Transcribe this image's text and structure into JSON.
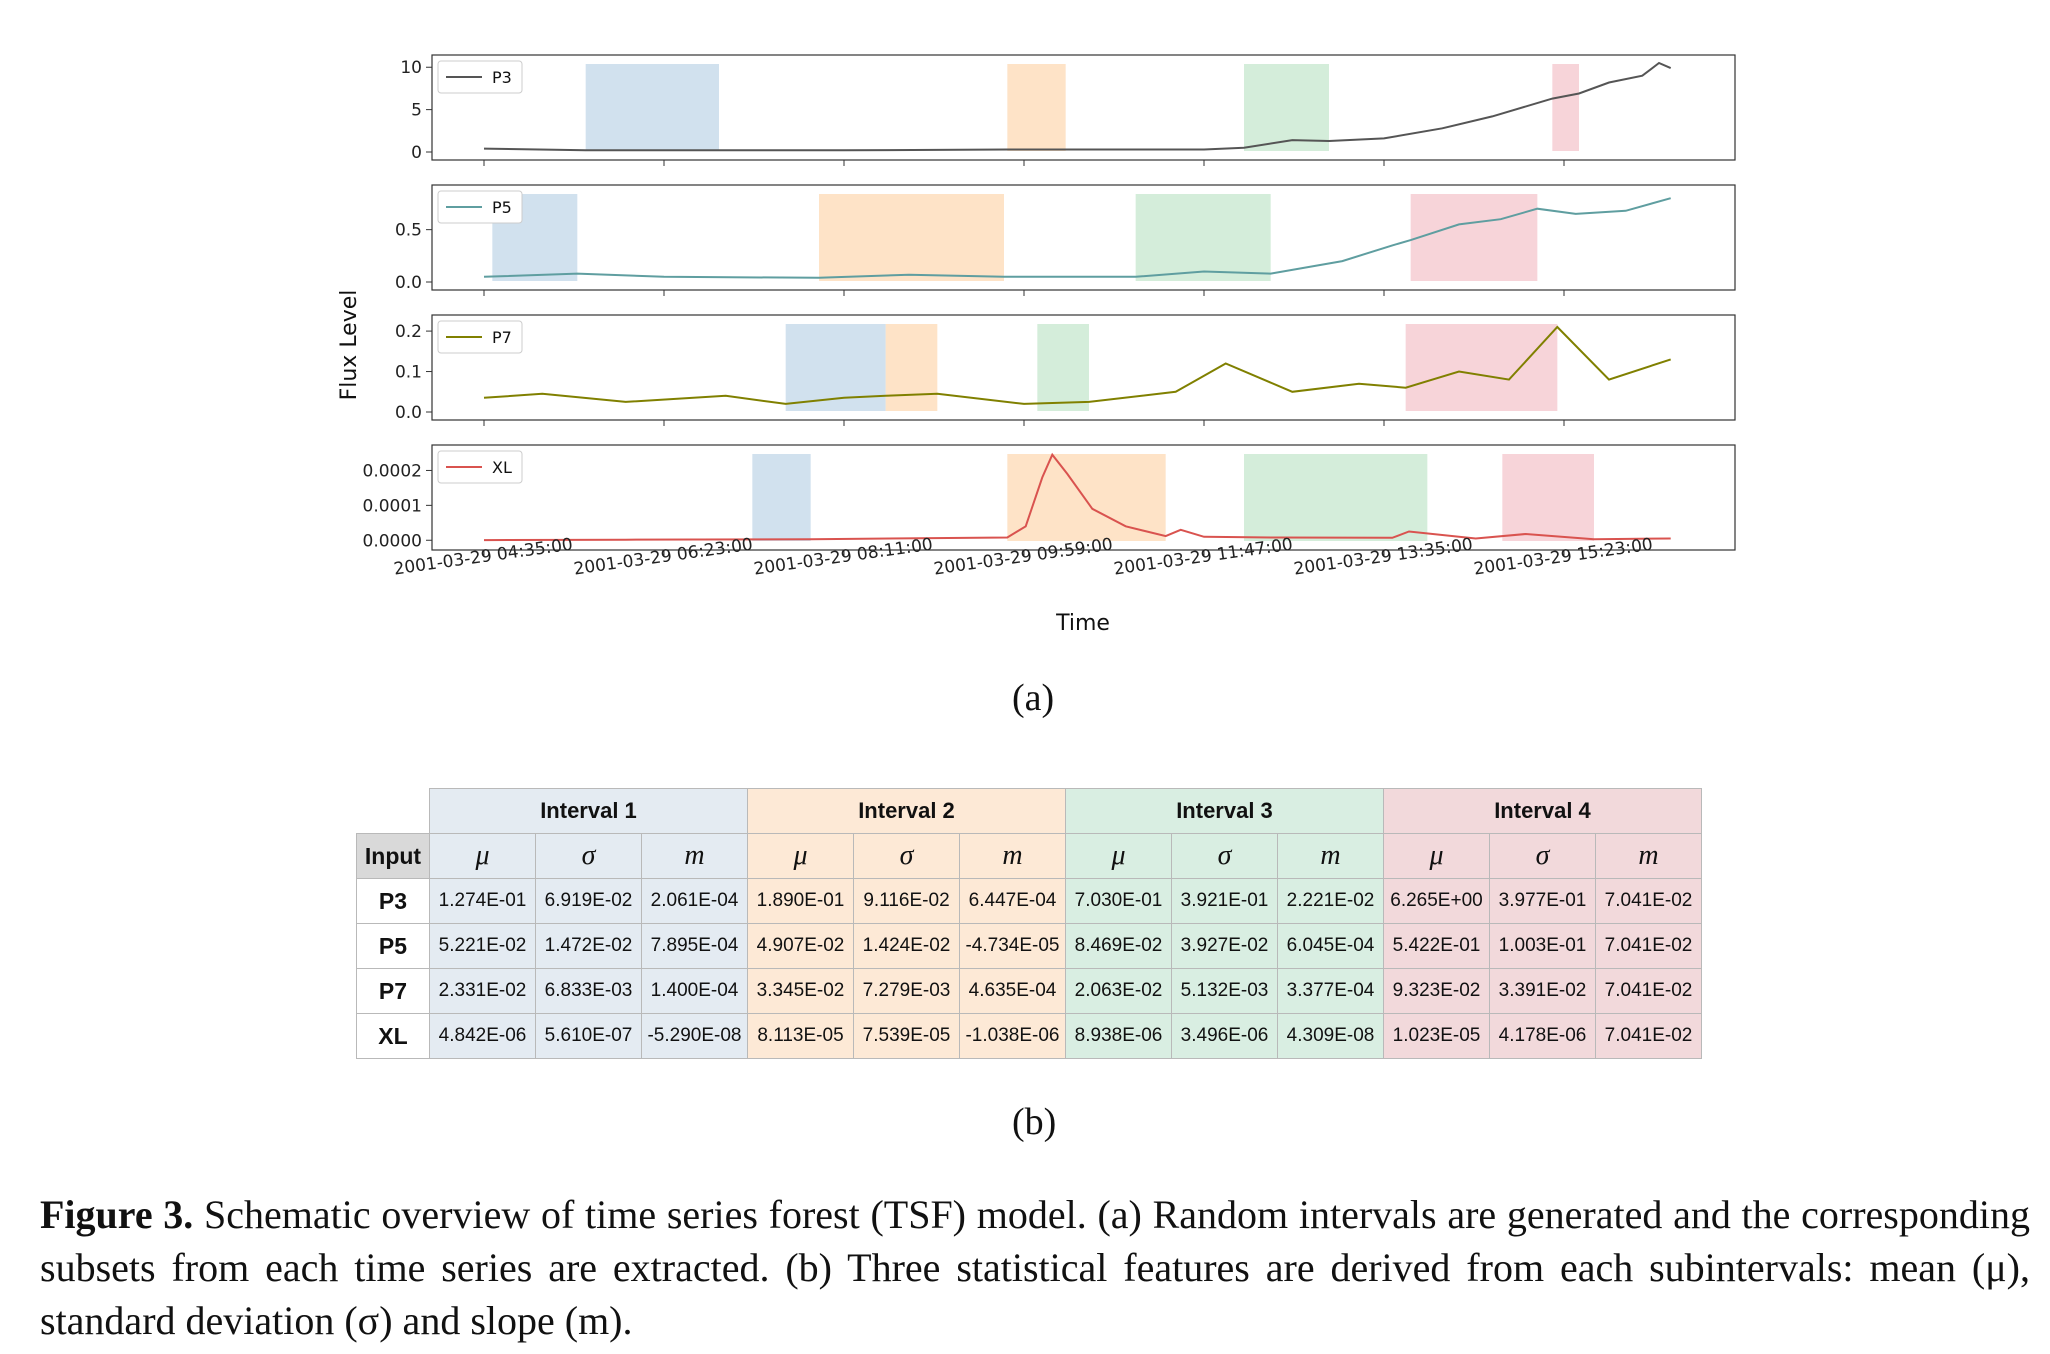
{
  "figure": {
    "subfigure_a_label": "(a)",
    "subfigure_b_label": "(b)",
    "caption_bold": "Figure 3.",
    "caption_text": "Schematic overview of time series forest (TSF) model. (a) Random intervals are generated and the corresponding subsets from each time series are extracted. (b) Three statistical features are derived from each subintervals: mean (μ), standard deviation (σ) and slope (m)."
  },
  "chart_data": {
    "type": "line",
    "xlabel": "Time",
    "ylabel": "Flux Level",
    "x_ticks": [
      "2001-03-29 04:35:00",
      "2001-03-29 06:23:00",
      "2001-03-29 08:11:00",
      "2001-03-29 09:59:00",
      "2001-03-29 11:47:00",
      "2001-03-29 13:35:00",
      "2001-03-29 15:23:00"
    ],
    "interval_colors": [
      "#b3cde3",
      "#fdd0a2",
      "#b7e1c1",
      "#f2b7bf"
    ],
    "panels": [
      {
        "name": "P3",
        "color": "#555555",
        "ylim": [
          0,
          10.5
        ],
        "yticks": [
          "10",
          "5",
          "0"
        ],
        "ytick_values": [
          10,
          5,
          0
        ],
        "intervals": [
          [
            "2001-03-29 05:36:00",
            "2001-03-29 06:56:00"
          ],
          [
            "2001-03-29 09:49:00",
            "2001-03-29 10:24:00"
          ],
          [
            "2001-03-29 12:11:00",
            "2001-03-29 13:02:00"
          ],
          [
            "2001-03-29 15:16:00",
            "2001-03-29 15:32:00"
          ]
        ],
        "x": [
          "2001-03-29 04:35:00",
          "2001-03-29 05:36:00",
          "2001-03-29 06:56:00",
          "2001-03-29 08:11:00",
          "2001-03-29 09:49:00",
          "2001-03-29 10:24:00",
          "2001-03-29 11:47:00",
          "2001-03-29 12:11:00",
          "2001-03-29 12:40:00",
          "2001-03-29 13:02:00",
          "2001-03-29 13:35:00",
          "2001-03-29 14:10:00",
          "2001-03-29 14:40:00",
          "2001-03-29 15:16:00",
          "2001-03-29 15:32:00",
          "2001-03-29 15:50:00",
          "2001-03-29 16:10:00",
          "2001-03-29 16:20:00",
          "2001-03-29 16:27:00"
        ],
        "y": [
          0.4,
          0.2,
          0.2,
          0.2,
          0.3,
          0.3,
          0.3,
          0.5,
          1.4,
          1.3,
          1.6,
          2.8,
          4.2,
          6.3,
          6.9,
          8.2,
          9.0,
          10.5,
          9.9
        ]
      },
      {
        "name": "P5",
        "color": "#5f9ea0",
        "ylim": [
          0,
          0.85
        ],
        "yticks": [
          "0.5",
          "0.0"
        ],
        "ytick_values": [
          0.5,
          0.0
        ],
        "intervals": [
          [
            "2001-03-29 04:40:00",
            "2001-03-29 05:31:00"
          ],
          [
            "2001-03-29 07:56:00",
            "2001-03-29 09:47:00"
          ],
          [
            "2001-03-29 11:06:00",
            "2001-03-29 12:27:00"
          ],
          [
            "2001-03-29 13:51:00",
            "2001-03-29 15:07:00"
          ]
        ],
        "x": [
          "2001-03-29 04:35:00",
          "2001-03-29 05:31:00",
          "2001-03-29 06:23:00",
          "2001-03-29 07:56:00",
          "2001-03-29 08:50:00",
          "2001-03-29 09:47:00",
          "2001-03-29 11:06:00",
          "2001-03-29 11:47:00",
          "2001-03-29 12:27:00",
          "2001-03-29 13:10:00",
          "2001-03-29 13:40:00",
          "2001-03-29 13:51:00",
          "2001-03-29 14:20:00",
          "2001-03-29 14:45:00",
          "2001-03-29 15:07:00",
          "2001-03-29 15:30:00",
          "2001-03-29 16:00:00",
          "2001-03-29 16:27:00"
        ],
        "y": [
          0.05,
          0.08,
          0.05,
          0.04,
          0.07,
          0.05,
          0.05,
          0.1,
          0.08,
          0.2,
          0.35,
          0.4,
          0.55,
          0.6,
          0.7,
          0.65,
          0.68,
          0.8
        ]
      },
      {
        "name": "P7",
        "color": "#808000",
        "ylim": [
          0,
          0.22
        ],
        "yticks": [
          "0.2",
          "0.1",
          "0.0"
        ],
        "ytick_values": [
          0.2,
          0.1,
          0.0
        ],
        "intervals": [
          [
            "2001-03-29 07:36:00",
            "2001-03-29 08:36:00"
          ],
          [
            "2001-03-29 08:36:00",
            "2001-03-29 09:07:00"
          ],
          [
            "2001-03-29 10:07:00",
            "2001-03-29 10:38:00"
          ],
          [
            "2001-03-29 13:48:00",
            "2001-03-29 15:19:00"
          ]
        ],
        "x": [
          "2001-03-29 04:35:00",
          "2001-03-29 05:10:00",
          "2001-03-29 06:00:00",
          "2001-03-29 07:00:00",
          "2001-03-29 07:36:00",
          "2001-03-29 08:11:00",
          "2001-03-29 08:36:00",
          "2001-03-29 09:07:00",
          "2001-03-29 09:59:00",
          "2001-03-29 10:38:00",
          "2001-03-29 11:30:00",
          "2001-03-29 12:00:00",
          "2001-03-29 12:40:00",
          "2001-03-29 13:20:00",
          "2001-03-29 13:48:00",
          "2001-03-29 14:20:00",
          "2001-03-29 14:50:00",
          "2001-03-29 15:19:00",
          "2001-03-29 15:50:00",
          "2001-03-29 16:27:00"
        ],
        "y": [
          0.035,
          0.045,
          0.025,
          0.04,
          0.02,
          0.035,
          0.04,
          0.045,
          0.02,
          0.025,
          0.05,
          0.12,
          0.05,
          0.07,
          0.06,
          0.1,
          0.08,
          0.21,
          0.08,
          0.13
        ]
      },
      {
        "name": "XL",
        "color": "#d9534f",
        "ylim": [
          -5e-06,
          0.00025
        ],
        "yticks": [
          "0.0002",
          "0.0001",
          "0.0000"
        ],
        "ytick_values": [
          0.0002,
          0.0001,
          0.0
        ],
        "intervals": [
          [
            "2001-03-29 07:16:00",
            "2001-03-29 07:51:00"
          ],
          [
            "2001-03-29 09:49:00",
            "2001-03-29 11:24:00"
          ],
          [
            "2001-03-29 12:11:00",
            "2001-03-29 14:01:00"
          ],
          [
            "2001-03-29 14:46:00",
            "2001-03-29 15:41:00"
          ]
        ],
        "x": [
          "2001-03-29 04:35:00",
          "2001-03-29 06:00:00",
          "2001-03-29 07:51:00",
          "2001-03-29 09:49:00",
          "2001-03-29 10:00:00",
          "2001-03-29 10:10:00",
          "2001-03-29 10:16:00",
          "2001-03-29 10:25:00",
          "2001-03-29 10:40:00",
          "2001-03-29 11:00:00",
          "2001-03-29 11:24:00",
          "2001-03-29 11:33:00",
          "2001-03-29 11:47:00",
          "2001-03-29 12:30:00",
          "2001-03-29 13:40:00",
          "2001-03-29 13:50:00",
          "2001-03-29 14:30:00",
          "2001-03-29 15:00:00",
          "2001-03-29 15:41:00",
          "2001-03-29 16:27:00"
        ],
        "y": [
          5e-07,
          1.5e-06,
          3e-06,
          8e-06,
          4e-05,
          0.00018,
          0.000245,
          0.00019,
          9e-05,
          4e-05,
          1.2e-05,
          3e-05,
          1e-05,
          8e-06,
          7e-06,
          2.5e-05,
          5e-06,
          1.8e-05,
          3e-06,
          5e-06
        ]
      }
    ]
  },
  "table": {
    "input_header": "Input",
    "interval_headers": [
      "Interval 1",
      "Interval 2",
      "Interval 3",
      "Interval 4"
    ],
    "symbols": [
      "μ",
      "σ",
      "m"
    ],
    "rows": [
      {
        "label": "P3",
        "values": [
          "1.274E-01",
          "6.919E-02",
          "2.061E-04",
          "1.890E-01",
          "9.116E-02",
          "6.447E-04",
          "7.030E-01",
          "3.921E-01",
          "2.221E-02",
          "6.265E+00",
          "3.977E-01",
          "7.041E-02"
        ]
      },
      {
        "label": "P5",
        "values": [
          "5.221E-02",
          "1.472E-02",
          "7.895E-04",
          "4.907E-02",
          "1.424E-02",
          "-4.734E-05",
          "8.469E-02",
          "3.927E-02",
          "6.045E-04",
          "5.422E-01",
          "1.003E-01",
          "7.041E-02"
        ]
      },
      {
        "label": "P7",
        "values": [
          "2.331E-02",
          "6.833E-03",
          "1.400E-04",
          "3.345E-02",
          "7.279E-03",
          "4.635E-04",
          "2.063E-02",
          "5.132E-03",
          "3.377E-04",
          "9.323E-02",
          "3.391E-02",
          "7.041E-02"
        ]
      },
      {
        "label": "XL",
        "values": [
          "4.842E-06",
          "5.610E-07",
          "-5.290E-08",
          "8.113E-05",
          "7.539E-05",
          "-1.038E-06",
          "8.938E-06",
          "3.496E-06",
          "4.309E-08",
          "1.023E-05",
          "4.178E-06",
          "7.041E-02"
        ]
      }
    ]
  }
}
